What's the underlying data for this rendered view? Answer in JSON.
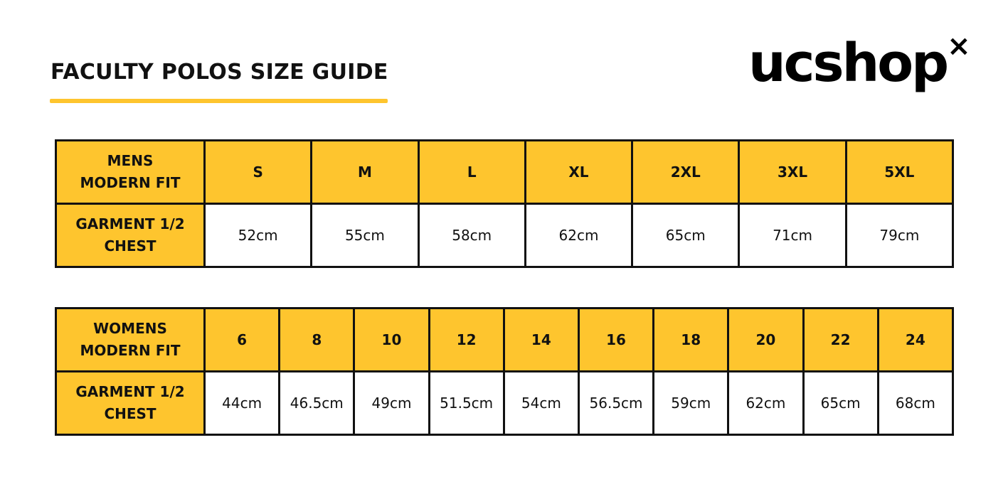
{
  "title": "FACULTY POLOS SIZE GUIDE",
  "logo": {
    "text": "ucshop",
    "mark": "×"
  },
  "colors": {
    "accent": "#FEC52E",
    "border": "#111111"
  },
  "mens": {
    "header_label": [
      "MENS",
      "MODERN FIT"
    ],
    "row_label": [
      "GARMENT 1/2",
      "CHEST"
    ],
    "sizes": [
      "S",
      "M",
      "L",
      "XL",
      "2XL",
      "3XL",
      "5XL"
    ],
    "chest": [
      "52cm",
      "55cm",
      "58cm",
      "62cm",
      "65cm",
      "71cm",
      "79cm"
    ]
  },
  "womens": {
    "header_label": [
      "WOMENS",
      "MODERN FIT"
    ],
    "row_label": [
      "GARMENT 1/2",
      "CHEST"
    ],
    "sizes": [
      "6",
      "8",
      "10",
      "12",
      "14",
      "16",
      "18",
      "20",
      "22",
      "24"
    ],
    "chest": [
      "44cm",
      "46.5cm",
      "49cm",
      "51.5cm",
      "54cm",
      "56.5cm",
      "59cm",
      "62cm",
      "65cm",
      "68cm"
    ]
  }
}
